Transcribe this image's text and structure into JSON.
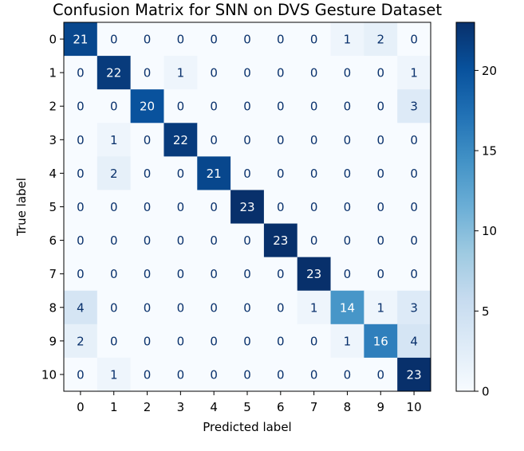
{
  "chart_data": {
    "type": "heatmap",
    "title": "Confusion Matrix for SNN on DVS Gesture Dataset",
    "xlabel": "Predicted label",
    "ylabel": "True label",
    "x_categories": [
      "0",
      "1",
      "2",
      "3",
      "4",
      "5",
      "6",
      "7",
      "8",
      "9",
      "10"
    ],
    "y_categories": [
      "0",
      "1",
      "2",
      "3",
      "4",
      "5",
      "6",
      "7",
      "8",
      "9",
      "10"
    ],
    "values": [
      [
        21,
        0,
        0,
        0,
        0,
        0,
        0,
        0,
        1,
        2,
        0
      ],
      [
        0,
        22,
        0,
        1,
        0,
        0,
        0,
        0,
        0,
        0,
        1
      ],
      [
        0,
        0,
        20,
        0,
        0,
        0,
        0,
        0,
        0,
        0,
        3
      ],
      [
        0,
        1,
        0,
        22,
        0,
        0,
        0,
        0,
        0,
        0,
        0
      ],
      [
        0,
        2,
        0,
        0,
        21,
        0,
        0,
        0,
        0,
        0,
        0
      ],
      [
        0,
        0,
        0,
        0,
        0,
        23,
        0,
        0,
        0,
        0,
        0
      ],
      [
        0,
        0,
        0,
        0,
        0,
        0,
        23,
        0,
        0,
        0,
        0
      ],
      [
        0,
        0,
        0,
        0,
        0,
        0,
        0,
        23,
        0,
        0,
        0
      ],
      [
        4,
        0,
        0,
        0,
        0,
        0,
        0,
        1,
        14,
        1,
        3
      ],
      [
        2,
        0,
        0,
        0,
        0,
        0,
        0,
        0,
        1,
        16,
        4
      ],
      [
        0,
        1,
        0,
        0,
        0,
        0,
        0,
        0,
        0,
        0,
        23
      ]
    ],
    "vmin": 0,
    "vmax": 23,
    "colormap": "Blues",
    "colorbar_ticks": [
      0,
      5,
      10,
      15,
      20
    ],
    "text_color_light": "#ffffff",
    "text_color_dark": "#08306b"
  }
}
